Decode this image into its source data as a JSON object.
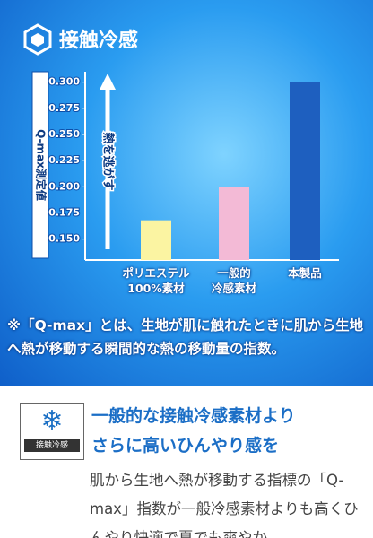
{
  "header": {
    "title": "接触冷感"
  },
  "chart_data": {
    "type": "bar",
    "y_label": "Q-max測定値",
    "annotation": "熱を逃がす",
    "categories": [
      "ポリエステル\n100%素材",
      "一般的\n冷感素材",
      "本製品"
    ],
    "values": [
      0.168,
      0.2,
      0.3
    ],
    "colors": [
      "#fbf4a2",
      "#f3bad6",
      "#1e5fbf"
    ],
    "ylim": [
      0.13,
      0.31
    ],
    "yticks": [
      {
        "value": 0.15,
        "label": "0.150"
      },
      {
        "value": 0.175,
        "label": "0.175"
      },
      {
        "value": 0.2,
        "label": "0.200"
      },
      {
        "value": 0.225,
        "label": "0.225"
      },
      {
        "value": 0.25,
        "label": "0.250"
      },
      {
        "value": 0.275,
        "label": "0.275"
      },
      {
        "value": 0.3,
        "label": "0.300"
      }
    ]
  },
  "note": "※「Q-max」とは、生地が肌に触れたときに肌から生地へ熱が移動する瞬間的な熱の移動量の指数。",
  "feature": {
    "icon_label": "接触冷感",
    "heading": "一般的な接触冷感素材より\nさらに高いひんやり感を",
    "body": "肌から生地へ熱が移動する指標の「Q-max」指数が一般冷感素材よりも高くひんやり快適で夏でも爽やか"
  }
}
